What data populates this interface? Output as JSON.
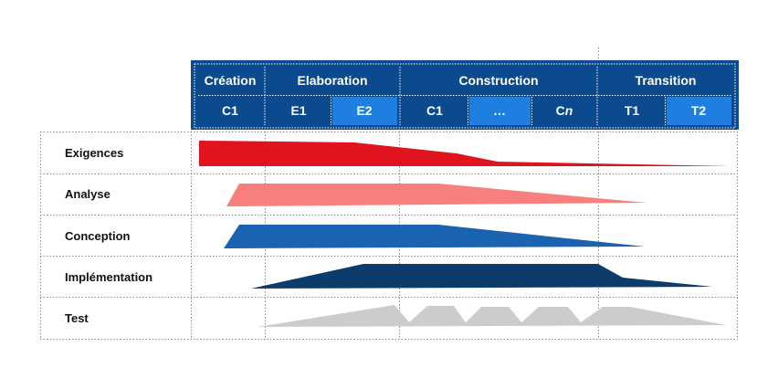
{
  "phases": [
    {
      "name": "Création",
      "iterations": [
        "C1"
      ]
    },
    {
      "name": "Elaboration",
      "iterations": [
        "E1",
        "E2"
      ]
    },
    {
      "name": "Construction",
      "iterations": [
        "C1",
        "…",
        "C",
        "n"
      ]
    },
    {
      "name": "Transition",
      "iterations": [
        "T1",
        "T2"
      ]
    }
  ],
  "disciplines": [
    "Exigences",
    "Analyse",
    "Conception",
    "Implémentation",
    "Test"
  ],
  "colors": {
    "header_dark": "#0b4a8f",
    "header_light": "#1e7fe0",
    "exigences": "#e0141e",
    "analyse": "#f7807c",
    "conception": "#1a63b0",
    "implementation": "#0d3b6c",
    "test": "#cccccc"
  }
}
